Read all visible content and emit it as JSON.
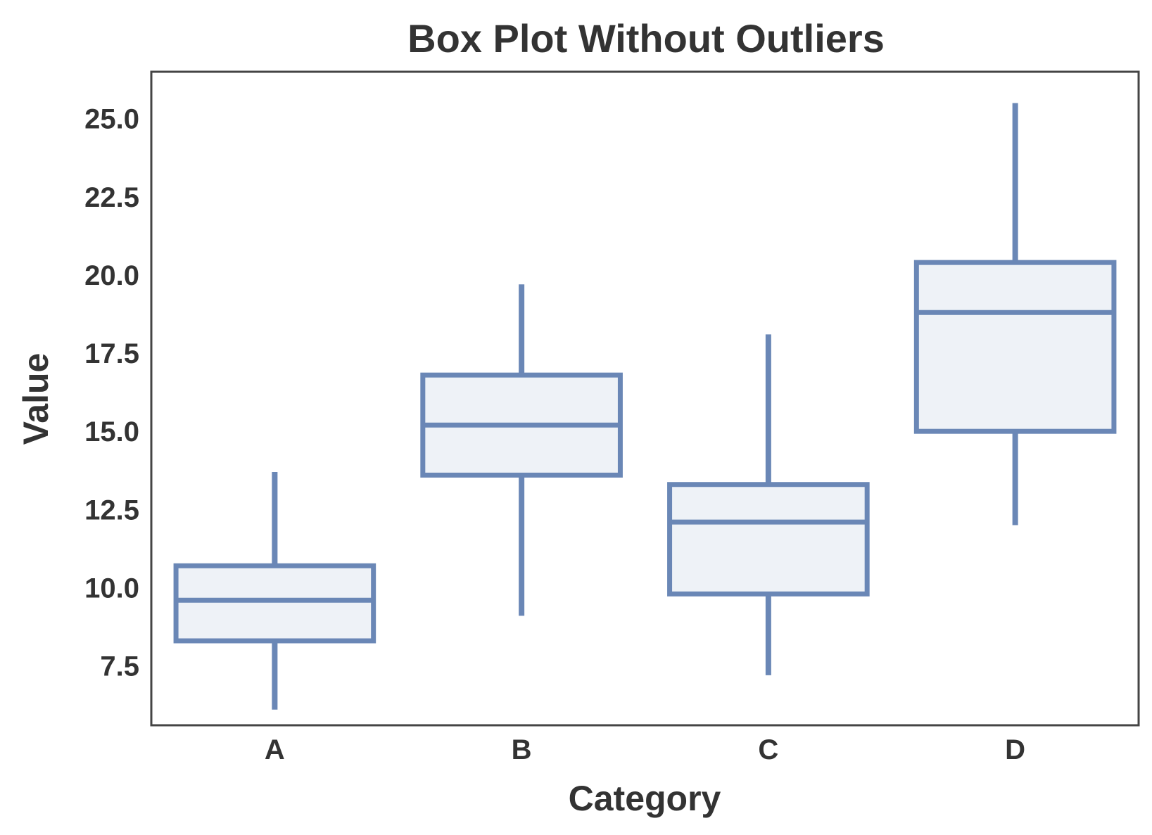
{
  "chart_data": {
    "type": "box",
    "title": "Box Plot Without Outliers",
    "xlabel": "Category",
    "ylabel": "Value",
    "categories": [
      "A",
      "B",
      "C",
      "D"
    ],
    "boxes": [
      {
        "category": "A",
        "whisker_low": 6.1,
        "q1": 8.3,
        "median": 9.6,
        "q3": 10.7,
        "whisker_high": 13.7
      },
      {
        "category": "B",
        "whisker_low": 9.1,
        "q1": 13.6,
        "median": 15.2,
        "q3": 16.8,
        "whisker_high": 19.7
      },
      {
        "category": "C",
        "whisker_low": 7.2,
        "q1": 9.8,
        "median": 12.1,
        "q3": 13.3,
        "whisker_high": 18.1
      },
      {
        "category": "D",
        "whisker_low": 12.0,
        "q1": 15.0,
        "median": 18.8,
        "q3": 20.4,
        "whisker_high": 25.5
      }
    ],
    "yticks": [
      7.5,
      10.0,
      12.5,
      15.0,
      17.5,
      20.0,
      22.5,
      25.0
    ],
    "ytick_labels": [
      "7.5",
      "10.0",
      "12.5",
      "15.0",
      "17.5",
      "20.0",
      "22.5",
      "25.0"
    ],
    "ylim": [
      5.6,
      26.5
    ],
    "grid": false,
    "legend": "none",
    "colors": {
      "box_edge": "#6a87b6",
      "box_fill": "#eef2f7",
      "text": "#333333",
      "frame": "#444444"
    }
  }
}
